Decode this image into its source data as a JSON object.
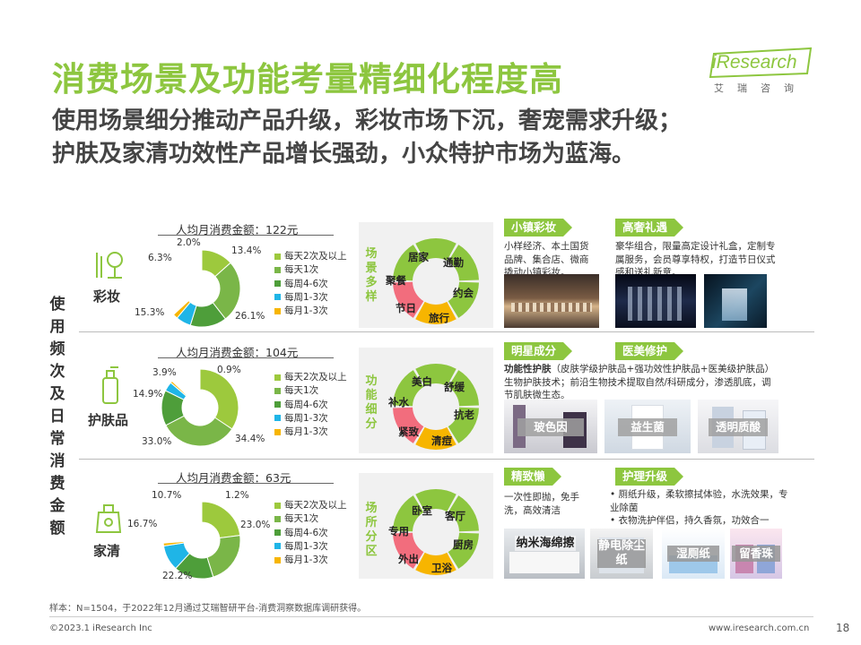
{
  "header": {
    "title": "消费场景及功能考量精细化程度高",
    "subtitle_line1": "使用场景细分推动产品升级，彩妆市场下沉，奢宠需求升级；",
    "subtitle_line2": "护肤及家清功效性产品增长强劲，小众特护市场为蓝海。",
    "logo_brand": "iResearch",
    "logo_cn": "艾瑞咨询"
  },
  "side_label": "使用频次及日常消费金额",
  "legend_labels": [
    "每天2次及以上",
    "每天1次",
    "每周4-6次",
    "每周1-3次",
    "每月1-3次"
  ],
  "colors": {
    "accent": "#8dc63f",
    "s1": "#9dc93d",
    "s2": "#7ab648",
    "s3": "#4e9e3a",
    "s4": "#1fb5e7",
    "s5": "#f7b500",
    "scene_panel": "#f1f1f1"
  },
  "chart_data": [
    {
      "type": "pie",
      "variant": "donut",
      "category": "彩妆",
      "title": "人均月消费金额：122元",
      "labels": [
        "每天2次及以上",
        "每天1次",
        "每周4-6次",
        "每周1-3次",
        "每月1-3次"
      ],
      "values": [
        13.4,
        26.1,
        15.3,
        6.3,
        2.0
      ],
      "others": 36.9,
      "value_labels": [
        "13.4%",
        "26.1%",
        "15.3%",
        "6.3%",
        "2.0%"
      ]
    },
    {
      "type": "pie",
      "variant": "donut",
      "category": "护肤品",
      "title": "人均月消费金额：104元",
      "labels": [
        "每天2次及以上",
        "每天1次",
        "每周4-6次",
        "每周1-3次",
        "每月1-3次"
      ],
      "values": [
        34.4,
        33.0,
        14.9,
        3.9,
        0.9
      ],
      "others": 12.9,
      "value_labels": [
        "34.4%",
        "33.0%",
        "14.9%",
        "3.9%",
        "0.9%"
      ]
    },
    {
      "type": "pie",
      "variant": "donut",
      "category": "家清",
      "title": "人均月消费金额：63元",
      "labels": [
        "每天2次及以上",
        "每天1次",
        "每周4-6次",
        "每周1-3次",
        "每月1-3次"
      ],
      "values": [
        23.0,
        22.2,
        16.7,
        10.7,
        1.2
      ],
      "others": 26.2,
      "value_labels": [
        "23.0%",
        "22.2%",
        "16.7%",
        "10.7%",
        "1.2%"
      ]
    }
  ],
  "scenes": [
    {
      "vlabel": "场景多样",
      "items": [
        "居家",
        "通勤",
        "约会",
        "旅行",
        "节日",
        "聚餐"
      ],
      "colors": [
        "#8dc63f",
        "#8dc63f",
        "#8dc63f",
        "#f7b500",
        "#f26d7d",
        "#8dc63f"
      ]
    },
    {
      "vlabel": "功能细分",
      "items": [
        "美白",
        "舒缓",
        "抗老",
        "清痘",
        "紧致",
        "补水"
      ],
      "colors": [
        "#8dc63f",
        "#8dc63f",
        "#8dc63f",
        "#f7b500",
        "#f26d7d",
        "#8dc63f"
      ]
    },
    {
      "vlabel": "场所分区",
      "items": [
        "卧室",
        "客厅",
        "厨房",
        "卫浴",
        "外出",
        "专用"
      ],
      "colors": [
        "#8dc63f",
        "#8dc63f",
        "#8dc63f",
        "#f7b500",
        "#f26d7d",
        "#8dc63f"
      ]
    }
  ],
  "rows": [
    {
      "tags": [
        "小镇彩妆",
        "高奢礼遇"
      ],
      "desc_left": "小样经济、本土国货品牌、集合店、微商撬动小镇彩妆。",
      "desc_right": "豪华组合，限量高定设计礼盒，定制专属服务，会员尊享特权，打造节日仪式感和送礼新意。"
    },
    {
      "tags": [
        "明星成分",
        "医美修护"
      ],
      "desc_prefix": "功能性护肤",
      "desc": "（皮肤学级护肤品+强功效性护肤品+医美级护肤品）生物护肤技术；前沿生物技术提取自然/科研成分，渗透肌底，调节肌肤微生态。",
      "products": [
        "玻色因",
        "益生菌",
        "透明质酸"
      ]
    },
    {
      "tags": [
        "精致懒",
        "护理升级"
      ],
      "desc_left": "一次性即抛，免手洗，高效清洁",
      "bullets": [
        "厕纸升级，柔软擦拭体验，水洗效果，专业除菌",
        "衣物洗护伴侣，持久香氛，功效合一"
      ],
      "products": [
        "纳米海绵擦",
        "静电除尘纸",
        "湿厕纸",
        "留香珠"
      ]
    }
  ],
  "footer": {
    "note": "样本：N=1504，于2022年12月通过艾瑞智研平台-消费洞察数据库调研获得。",
    "copyright": "©2023.1 iResearch Inc",
    "website": "www.iresearch.com.cn",
    "page": "18"
  }
}
